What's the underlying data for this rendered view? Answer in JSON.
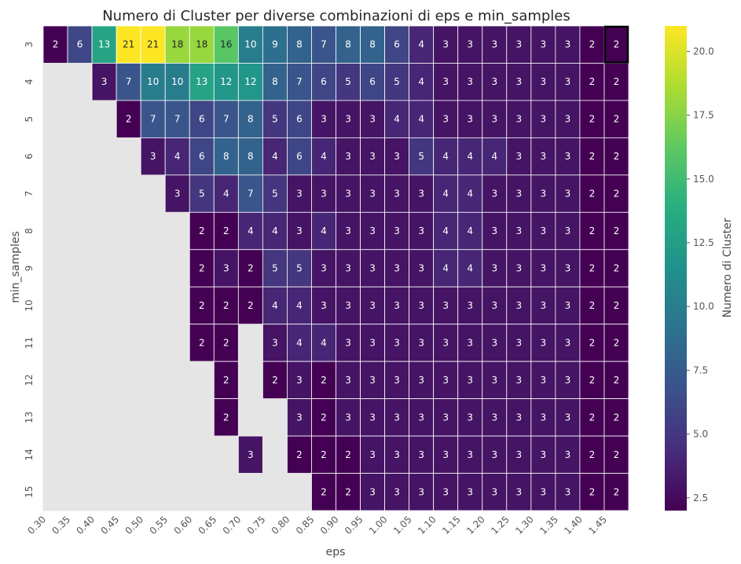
{
  "chart_data": {
    "type": "heatmap",
    "title": "Numero di Cluster per diverse combinazioni di eps e min_samples",
    "xlabel": "eps",
    "ylabel": "min_samples",
    "colorbar_label": "Numero di Cluster",
    "colormap": "viridis",
    "vmin": 2,
    "vmax": 21,
    "colorbar_ticks": [
      "2.5",
      "5.0",
      "7.5",
      "10.0",
      "12.5",
      "15.0",
      "17.5",
      "20.0"
    ],
    "x_categories": [
      "0.30",
      "0.35",
      "0.40",
      "0.45",
      "0.50",
      "0.55",
      "0.60",
      "0.65",
      "0.70",
      "0.75",
      "0.80",
      "0.85",
      "0.90",
      "0.95",
      "1.00",
      "1.05",
      "1.10",
      "1.15",
      "1.20",
      "1.25",
      "1.30",
      "1.35",
      "1.40",
      "1.45"
    ],
    "y_categories": [
      "3",
      "4",
      "5",
      "6",
      "7",
      "8",
      "9",
      "10",
      "11",
      "12",
      "13",
      "14",
      "15"
    ],
    "values": [
      [
        2,
        6,
        13,
        21,
        21,
        18,
        18,
        16,
        10,
        9,
        8,
        7,
        8,
        8,
        6,
        4,
        3,
        3,
        3,
        3,
        3,
        3,
        2,
        2
      ],
      [
        null,
        null,
        3,
        7,
        10,
        10,
        13,
        12,
        12,
        8,
        7,
        6,
        5,
        6,
        5,
        4,
        3,
        3,
        3,
        3,
        3,
        3,
        2,
        2
      ],
      [
        null,
        null,
        null,
        2,
        7,
        7,
        6,
        7,
        8,
        5,
        6,
        3,
        3,
        3,
        4,
        4,
        3,
        3,
        3,
        3,
        3,
        3,
        2,
        2
      ],
      [
        null,
        null,
        null,
        null,
        3,
        4,
        6,
        8,
        8,
        4,
        6,
        4,
        3,
        3,
        3,
        5,
        4,
        4,
        4,
        3,
        3,
        3,
        2,
        2
      ],
      [
        null,
        null,
        null,
        null,
        null,
        3,
        5,
        4,
        7,
        5,
        3,
        3,
        3,
        3,
        3,
        3,
        4,
        4,
        3,
        3,
        3,
        3,
        2,
        2
      ],
      [
        null,
        null,
        null,
        null,
        null,
        null,
        2,
        2,
        4,
        4,
        3,
        4,
        3,
        3,
        3,
        3,
        4,
        4,
        3,
        3,
        3,
        3,
        2,
        2
      ],
      [
        null,
        null,
        null,
        null,
        null,
        null,
        2,
        3,
        2,
        5,
        5,
        3,
        3,
        3,
        3,
        3,
        4,
        4,
        3,
        3,
        3,
        3,
        2,
        2
      ],
      [
        null,
        null,
        null,
        null,
        null,
        null,
        2,
        2,
        2,
        4,
        4,
        3,
        3,
        3,
        3,
        3,
        3,
        3,
        3,
        3,
        3,
        3,
        2,
        2
      ],
      [
        null,
        null,
        null,
        null,
        null,
        null,
        2,
        2,
        null,
        3,
        4,
        4,
        3,
        3,
        3,
        3,
        3,
        3,
        3,
        3,
        3,
        3,
        2,
        2
      ],
      [
        null,
        null,
        null,
        null,
        null,
        null,
        null,
        2,
        null,
        2,
        3,
        2,
        3,
        3,
        3,
        3,
        3,
        3,
        3,
        3,
        3,
        3,
        2,
        2
      ],
      [
        null,
        null,
        null,
        null,
        null,
        null,
        null,
        2,
        null,
        null,
        3,
        2,
        3,
        3,
        3,
        3,
        3,
        3,
        3,
        3,
        3,
        3,
        2,
        2
      ],
      [
        null,
        null,
        null,
        null,
        null,
        null,
        null,
        null,
        3,
        null,
        2,
        2,
        2,
        3,
        3,
        3,
        3,
        3,
        3,
        3,
        3,
        3,
        2,
        2
      ],
      [
        null,
        null,
        null,
        null,
        null,
        null,
        null,
        null,
        null,
        null,
        null,
        2,
        2,
        3,
        3,
        3,
        3,
        3,
        3,
        3,
        3,
        3,
        2,
        2
      ]
    ],
    "missing_color": "#e5e5e5",
    "highlighted_cell": {
      "min_samples": "3",
      "eps": "1.45"
    },
    "grid": true,
    "legend": "colorbar-right"
  }
}
